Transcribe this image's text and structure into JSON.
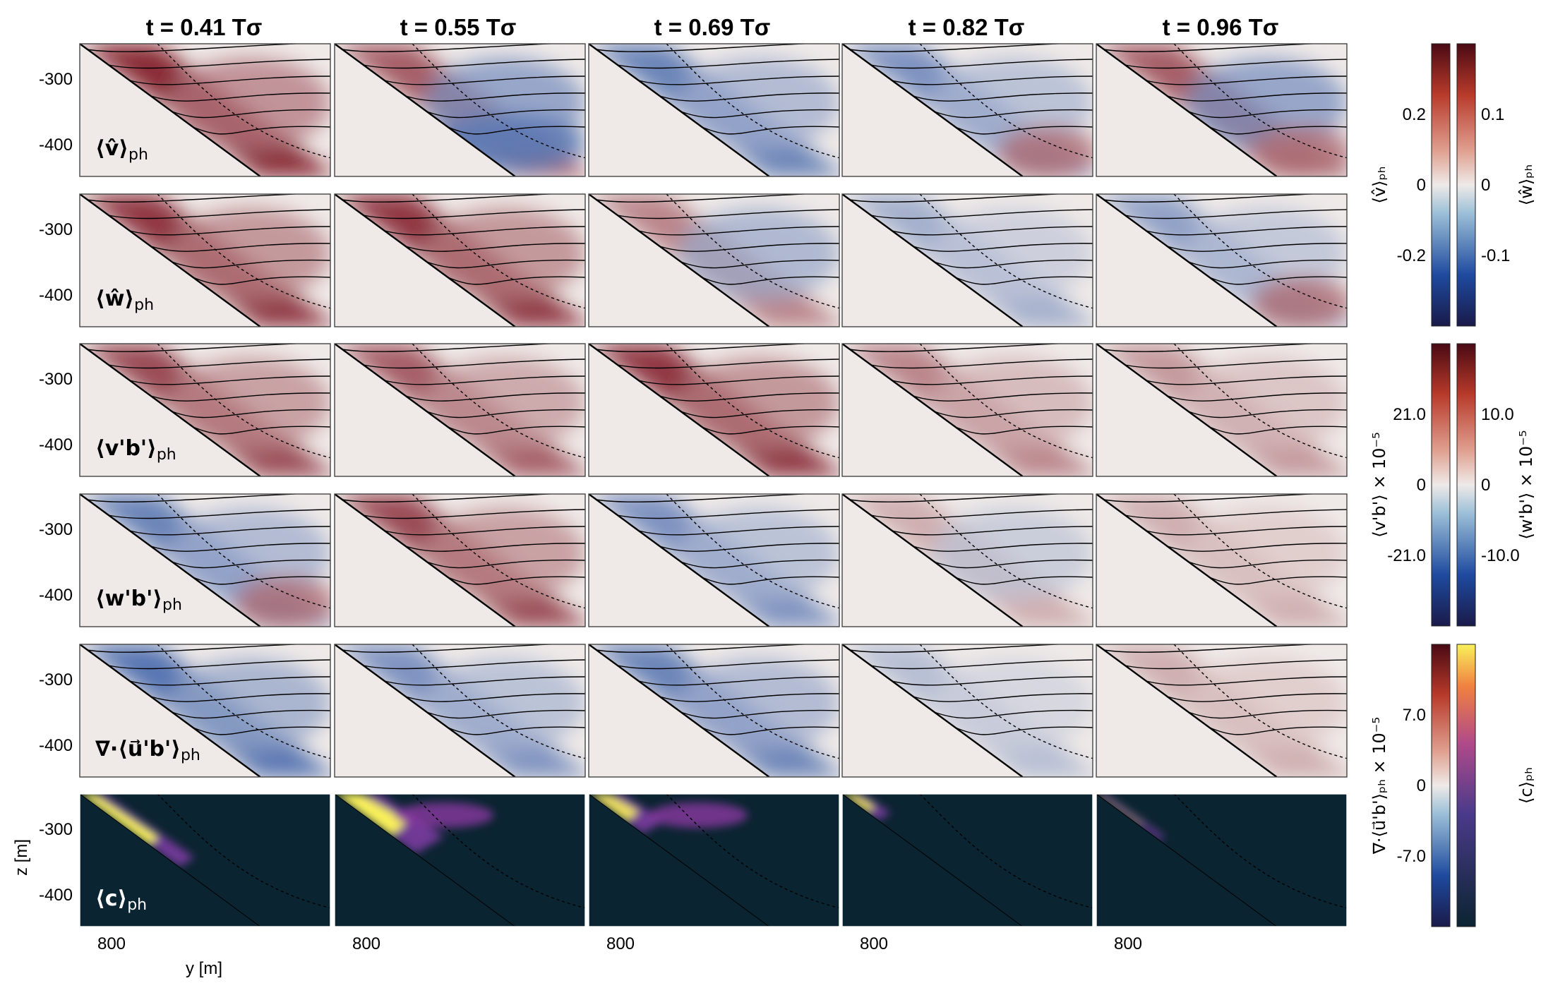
{
  "columns": [
    "t = 0.41 Tσ",
    "t = 0.55 Tσ",
    "t = 0.69 Tσ",
    "t = 0.82 Tσ",
    "t = 0.96 Tσ"
  ],
  "rows": [
    {
      "key": "v",
      "label": "⟨v̂⟩",
      "sub": "ph"
    },
    {
      "key": "w",
      "label": "⟨ŵ⟩",
      "sub": "ph"
    },
    {
      "key": "vb",
      "label": "⟨v'b'⟩",
      "sub": "ph"
    },
    {
      "key": "wb",
      "label": "⟨w'b'⟩",
      "sub": "ph"
    },
    {
      "key": "div",
      "label": "∇·⟨u⃗'b'⟩",
      "sub": "ph"
    },
    {
      "key": "c",
      "label": "⟨c⟩",
      "sub": "ph"
    }
  ],
  "axes": {
    "y_ticks": [
      "-300",
      "-400"
    ],
    "x_tick": "800",
    "xlabel": "y [m]",
    "ylabel": "z [m]"
  },
  "colorbars": [
    {
      "label_left": "⟨v̂⟩ₚₕ",
      "label_right": "⟨ŵ⟩ₚₕ",
      "ticks_left": [
        "0.2",
        "0",
        "-0.2"
      ],
      "ticks_right": [
        "0.1",
        "0",
        "-0.1"
      ]
    },
    {
      "label_left": "⟨v'b'⟩ × 10⁻⁵",
      "label_right": "⟨w'b'⟩ × 10⁻⁵",
      "ticks_left": [
        "21.0",
        "0",
        "-21.0"
      ],
      "ticks_right": [
        "10.0",
        "0",
        "-10.0"
      ]
    },
    {
      "label_left": "∇·⟨u⃗'b'⟩ₚₕ  × 10⁻⁵",
      "label_right": "⟨c⟩ₚₕ",
      "ticks_left": [
        "7.0",
        "0",
        "-7.0"
      ],
      "ticks_right": []
    }
  ],
  "colors": {
    "balance_red": "#7a0e1c",
    "balance_blue": "#1e4a9e",
    "neutral": "#efeae8",
    "tracer_bg": "#0b2431",
    "tracer_high": "#f9f05a"
  },
  "chart_data": {
    "type": "heatmap",
    "y_tick_values": [
      -300,
      -400
    ],
    "x_tick_value": 800,
    "panels": {
      "v": [
        {
          "sign": 1,
          "intensity": 0.95,
          "pattern": "slope-band"
        },
        {
          "sign": 0,
          "intensity": 0.7,
          "pattern": "red-top-blue-bottom"
        },
        {
          "sign": -1,
          "intensity": 0.7,
          "pattern": "blue-layers"
        },
        {
          "sign": -1,
          "intensity": 0.6,
          "pattern": "blue-top-red-bottom"
        },
        {
          "sign": 0,
          "intensity": 0.7,
          "pattern": "blue-top-red-bottom"
        }
      ],
      "w": [
        {
          "sign": 1,
          "intensity": 0.9,
          "pattern": "red-blob"
        },
        {
          "sign": 1,
          "intensity": 0.9,
          "pattern": "red-streaks"
        },
        {
          "sign": 0,
          "intensity": 0.5,
          "pattern": "mixed"
        },
        {
          "sign": -1,
          "intensity": 0.4,
          "pattern": "weak-blue"
        },
        {
          "sign": -1,
          "intensity": 0.5,
          "pattern": "blue-top-red-bottom"
        }
      ],
      "vb": [
        {
          "sign": 1,
          "intensity": 0.8,
          "pattern": "slope-band"
        },
        {
          "sign": 1,
          "intensity": 0.7,
          "pattern": "red-bands"
        },
        {
          "sign": 1,
          "intensity": 0.9,
          "pattern": "red-near-slope"
        },
        {
          "sign": 1,
          "intensity": 0.5,
          "pattern": "red-band"
        },
        {
          "sign": 1,
          "intensity": 0.4,
          "pattern": "weak-red"
        }
      ],
      "wb": [
        {
          "sign": -1,
          "intensity": 0.7,
          "pattern": "blue-slope-red-deep"
        },
        {
          "sign": 1,
          "intensity": 0.8,
          "pattern": "red-blob"
        },
        {
          "sign": -1,
          "intensity": 0.6,
          "pattern": "blue-near-slope"
        },
        {
          "sign": 0,
          "intensity": 0.3,
          "pattern": "weak-mixed"
        },
        {
          "sign": 1,
          "intensity": 0.3,
          "pattern": "weak-red"
        }
      ],
      "div": [
        {
          "sign": -1,
          "intensity": 0.8,
          "pattern": "blue-slope-band"
        },
        {
          "sign": -1,
          "intensity": 0.6,
          "pattern": "blue-near-slope"
        },
        {
          "sign": -1,
          "intensity": 0.7,
          "pattern": "blue-slope-band"
        },
        {
          "sign": -1,
          "intensity": 0.3,
          "pattern": "weak-blue"
        },
        {
          "sign": 1,
          "intensity": 0.3,
          "pattern": "weak-red-band"
        }
      ],
      "c": [
        {
          "sign": 1,
          "intensity": 1.0,
          "pattern": "plume-along-slope"
        },
        {
          "sign": 1,
          "intensity": 1.0,
          "pattern": "plume-lifting"
        },
        {
          "sign": 1,
          "intensity": 0.9,
          "pattern": "plume-top"
        },
        {
          "sign": 1,
          "intensity": 0.9,
          "pattern": "small-corner"
        },
        {
          "sign": 1,
          "intensity": 0.4,
          "pattern": "thin-trace"
        }
      ]
    }
  }
}
